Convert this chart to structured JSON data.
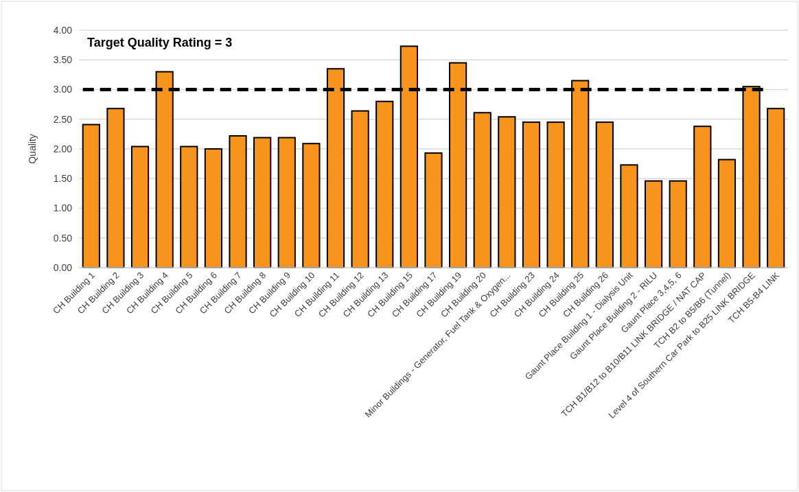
{
  "chart_data": {
    "type": "bar",
    "ylabel": "Quality",
    "categories": [
      "CH Building 1",
      "CH Building 2",
      "CH Building 3",
      "CH Building 4",
      "CH Building 5",
      "CH Building 6",
      "CH Building 7",
      "CH Building 8",
      "CH Building 9",
      "CH Building 10",
      "CH Building 11",
      "CH Building 12",
      "CH Building 13",
      "CH Building 15",
      "CH Building 17",
      "CH Building 19",
      "CH Building 20",
      "Minor Buildings - Generator,  Fuel Tank & Oxygen...",
      "CH Building 23",
      "CH Building 24",
      "CH Building 25",
      "CH Building 26",
      "Gaunt Place Building 1 - Dialysis Unit",
      "Gaunt Place Building 2 - RILU",
      "Gaunt Place 3,4,5, 6",
      "TCH B1/B12 to B10/B11 LINK BRIDGE / NAT CAP",
      "TCH B2 to B5/B6 (Tunnel)",
      "Level 4 of Southern Car Park to B25 LINK BRIDGE",
      "TCH B5-B4 LINK"
    ],
    "values": [
      2.41,
      2.68,
      2.04,
      3.3,
      2.04,
      2.0,
      2.22,
      2.19,
      2.19,
      2.09,
      3.35,
      2.64,
      2.8,
      3.73,
      1.93,
      3.45,
      2.61,
      2.54,
      2.45,
      2.45,
      3.15,
      2.45,
      1.73,
      1.46,
      1.46,
      2.38,
      1.82,
      3.05,
      2.68
    ],
    "color": "#f7941d",
    "ylim": [
      0,
      4
    ],
    "yticks": [
      {
        "value": 0,
        "label": "0.00"
      },
      {
        "value": 0.5,
        "label": "0.50"
      },
      {
        "value": 1,
        "label": "1.00"
      },
      {
        "value": 1.5,
        "label": "1.50"
      },
      {
        "value": 2,
        "label": "2.00"
      },
      {
        "value": 2.5,
        "label": "2.50"
      },
      {
        "value": 3,
        "label": "3.00"
      },
      {
        "value": 3.5,
        "label": "3.50"
      },
      {
        "value": 4,
        "label": "4.00"
      }
    ],
    "grid": "y",
    "ref_lines": [
      {
        "axis": "y",
        "value": 3,
        "label": "Target Quality Rating = 3",
        "color": "#000000",
        "line_style": "dashed"
      }
    ]
  }
}
